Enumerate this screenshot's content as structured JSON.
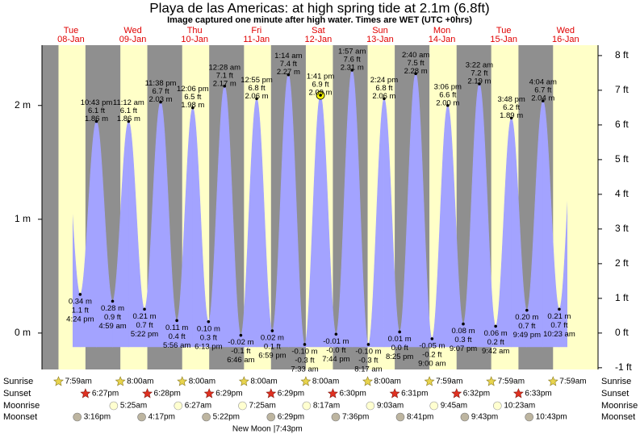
{
  "header": {
    "title": "Playa de las Americas: at high  spring tide at 2.1m (6.8ft)",
    "subtitle": "Image captured one minute after high water. Times are WET (UTC +0hrs)"
  },
  "chart_data": {
    "type": "tide",
    "ylim": [
      -0.32,
      2.53
    ],
    "yticks": [
      {
        "value": 0,
        "label": "0 m"
      },
      {
        "value": 1,
        "label": "1 m"
      },
      {
        "value": 2,
        "label": "2 m"
      }
    ],
    "y2lim": [
      -1.05,
      8.3
    ],
    "y2ticks": [
      {
        "value": -1,
        "label": "-1 ft"
      },
      {
        "value": 0,
        "label": "0 ft"
      },
      {
        "value": 1,
        "label": "1 ft"
      },
      {
        "value": 2,
        "label": "2 ft"
      },
      {
        "value": 3,
        "label": "3 ft"
      },
      {
        "value": 4,
        "label": "4 ft"
      },
      {
        "value": 5,
        "label": "5 ft"
      },
      {
        "value": 6,
        "label": "6 ft"
      },
      {
        "value": 7,
        "label": "7 ft"
      },
      {
        "value": 8,
        "label": "8 ft"
      }
    ],
    "rows": [
      "Sunrise",
      "Sunset",
      "Moonrise",
      "Moonset"
    ],
    "days": [
      {
        "weekday": "Tue",
        "date": "08-Jan",
        "tides": [
          {
            "time": "4:24 pm",
            "value": 0.34,
            "value_label": "0.34 m",
            "feet": 1.1,
            "feet_label": "1.1 ft"
          },
          {
            "time": "10:43 pm",
            "value": 1.86,
            "value_label": "1.86 m",
            "feet": 6.1,
            "feet_label": "6.1 ft"
          }
        ],
        "almanac": [
          "7:59am",
          "6:27pm",
          null,
          "3:16pm"
        ]
      },
      {
        "weekday": "Wed",
        "date": "09-Jan",
        "tides": [
          {
            "time": "4:59 am",
            "value": 0.28,
            "value_label": "0.28 m",
            "feet": 0.9,
            "feet_label": "0.9 ft"
          },
          {
            "time": "11:12 am",
            "value": 1.86,
            "value_label": "1.86 m",
            "feet": 6.1,
            "feet_label": "6.1 ft"
          },
          {
            "time": "5:22 pm",
            "value": 0.21,
            "value_label": "0.21 m",
            "feet": 0.7,
            "feet_label": "0.7 ft"
          },
          {
            "time": "11:38 pm",
            "value": 2.03,
            "value_label": "2.03 m",
            "feet": 6.7,
            "feet_label": "6.7 ft"
          }
        ],
        "almanac": [
          "8:00am",
          "6:28pm",
          "5:25am",
          "4:17pm"
        ]
      },
      {
        "weekday": "Thu",
        "date": "10-Jan",
        "tides": [
          {
            "time": "5:56 am",
            "value": 0.11,
            "value_label": "0.11 m",
            "feet": 0.4,
            "feet_label": "0.4 ft"
          },
          {
            "time": "12:06 pm",
            "value": 1.98,
            "value_label": "1.98 m",
            "feet": 6.5,
            "feet_label": "6.5 ft"
          },
          {
            "time": "6:13 pm",
            "value": 0.1,
            "value_label": "0.10 m",
            "feet": 0.3,
            "feet_label": "0.3 ft"
          }
        ],
        "almanac": [
          "8:00am",
          "6:29pm",
          "6:27am",
          "5:22pm"
        ]
      },
      {
        "weekday": "Fri",
        "date": "11-Jan",
        "tides": [
          {
            "time": "12:28 am",
            "value": 2.17,
            "value_label": "2.17 m",
            "feet": 7.1,
            "feet_label": "7.1 ft"
          },
          {
            "time": "6:46 am",
            "value": -0.02,
            "value_label": "-0.02 m",
            "feet": -0.1,
            "feet_label": "-0.1 ft"
          },
          {
            "time": "12:55 pm",
            "value": 2.06,
            "value_label": "2.06 m",
            "feet": 6.8,
            "feet_label": "6.8 ft"
          },
          {
            "time": "6:59 pm",
            "value": 0.02,
            "value_label": "0.02 m",
            "feet": 0.1,
            "feet_label": "0.1 ft"
          }
        ],
        "almanac": [
          "8:00am",
          "6:29pm",
          "7:25am",
          "6:29pm"
        ],
        "moon_phase": {
          "label": "New Moon",
          "time": "|7:43pm"
        }
      },
      {
        "weekday": "Sat",
        "date": "12-Jan",
        "tides": [
          {
            "time": "1:14 am",
            "value": 2.27,
            "value_label": "2.27 m",
            "feet": 7.4,
            "feet_label": "7.4 ft"
          },
          {
            "time": "7:33 am",
            "value": -0.1,
            "value_label": "-0.10 m",
            "feet": -0.3,
            "feet_label": "-0.3 ft"
          },
          {
            "time": "1:41 pm",
            "value": 2.09,
            "value_label": "2.09 m",
            "feet": 6.9,
            "feet_label": "6.9 ft"
          },
          {
            "time": "7:44 pm",
            "value": -0.01,
            "value_label": "-0.01 m",
            "feet": -0.0,
            "feet_label": "-0.0 ft"
          }
        ],
        "almanac": [
          "8:00am",
          "6:30pm",
          "8:17am",
          "7:36pm"
        ]
      },
      {
        "weekday": "Sun",
        "date": "13-Jan",
        "tides": [
          {
            "time": "1:57 am",
            "value": 2.31,
            "value_label": "2.31 m",
            "feet": 7.6,
            "feet_label": "7.6 ft"
          },
          {
            "time": "8:17 am",
            "value": -0.1,
            "value_label": "-0.10 m",
            "feet": -0.3,
            "feet_label": "-0.3 ft"
          },
          {
            "time": "2:24 pm",
            "value": 2.06,
            "value_label": "2.06 m",
            "feet": 6.8,
            "feet_label": "6.8 ft"
          },
          {
            "time": "8:25 pm",
            "value": 0.01,
            "value_label": "0.01 m",
            "feet": 0.0,
            "feet_label": "0.0 ft"
          }
        ],
        "almanac": [
          "8:00am",
          "6:31pm",
          "9:03am",
          "8:41pm"
        ]
      },
      {
        "weekday": "Mon",
        "date": "14-Jan",
        "tides": [
          {
            "time": "2:40 am",
            "value": 2.28,
            "value_label": "2.28 m",
            "feet": 7.5,
            "feet_label": "7.5 ft"
          },
          {
            "time": "9:00 am",
            "value": -0.05,
            "value_label": "-0.05 m",
            "feet": -0.2,
            "feet_label": "-0.2 ft"
          },
          {
            "time": "3:06 pm",
            "value": 2.0,
            "value_label": "2.00 m",
            "feet": 6.6,
            "feet_label": "6.6 ft"
          },
          {
            "time": "9:07 pm",
            "value": 0.08,
            "value_label": "0.08 m",
            "feet": 0.3,
            "feet_label": "0.3 ft"
          }
        ],
        "almanac": [
          "7:59am",
          "6:32pm",
          "9:45am",
          "9:43pm"
        ]
      },
      {
        "weekday": "Tue",
        "date": "15-Jan",
        "tides": [
          {
            "time": "3:22 am",
            "value": 2.19,
            "value_label": "2.19 m",
            "feet": 7.2,
            "feet_label": "7.2 ft"
          },
          {
            "time": "9:42 am",
            "value": 0.06,
            "value_label": "0.06 m",
            "feet": 0.2,
            "feet_label": "0.2 ft"
          },
          {
            "time": "3:48 pm",
            "value": 1.89,
            "value_label": "1.89 m",
            "feet": 6.2,
            "feet_label": "6.2 ft"
          },
          {
            "time": "9:49 pm",
            "value": 0.2,
            "value_label": "0.20 m",
            "feet": 0.7,
            "feet_label": "0.7 ft"
          }
        ],
        "almanac": [
          "7:59am",
          "6:33pm",
          "10:23am",
          "10:43pm"
        ]
      },
      {
        "weekday": "Wed",
        "date": "16-Jan",
        "tides": [
          {
            "time": "4:04 am",
            "value": 2.04,
            "value_label": "2.04 m",
            "feet": 6.7,
            "feet_label": "6.7 ft"
          },
          {
            "time": "10:23 am",
            "value": 0.21,
            "value_label": "0.21 m",
            "feet": 0.7,
            "feet_label": "0.7 ft"
          }
        ],
        "almanac": [
          "7:59am",
          null,
          null,
          null
        ]
      }
    ]
  }
}
